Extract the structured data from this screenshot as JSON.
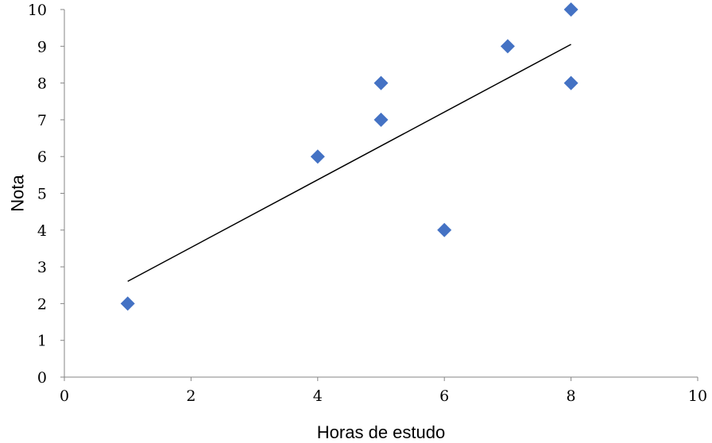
{
  "chart_data": {
    "type": "scatter",
    "title": "",
    "xlabel": "Horas de estudo",
    "ylabel": "Nota",
    "xlim": [
      0,
      10
    ],
    "ylim": [
      0,
      10
    ],
    "xticks": [
      "0",
      "2",
      "4",
      "6",
      "8",
      "10"
    ],
    "yticks": [
      "0",
      "1",
      "2",
      "3",
      "4",
      "5",
      "6",
      "7",
      "8",
      "9",
      "10"
    ],
    "grid": false,
    "legend": "none",
    "marker": "diamond",
    "point_color": "#4472C4",
    "trendline_color": "#000000",
    "series": [
      {
        "points": [
          {
            "x": 1,
            "y": 2
          },
          {
            "x": 4,
            "y": 6
          },
          {
            "x": 5,
            "y": 7
          },
          {
            "x": 5,
            "y": 8
          },
          {
            "x": 6,
            "y": 4
          },
          {
            "x": 7,
            "y": 9
          },
          {
            "x": 8,
            "y": 8
          },
          {
            "x": 8,
            "y": 10
          }
        ]
      }
    ],
    "trendline": {
      "type": "linear",
      "x_range": [
        1,
        8
      ]
    }
  }
}
